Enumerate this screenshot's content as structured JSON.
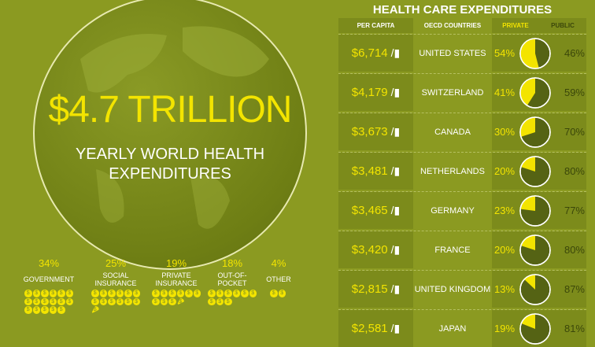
{
  "hero": {
    "amount": "$4.7 TRILLION",
    "caption_line1": "YEARLY WORLD HEALTH",
    "caption_line2": "EXPENDITURES"
  },
  "categories": [
    {
      "pct": "34%",
      "label": "GOVERNMENT",
      "value": 34
    },
    {
      "pct": "25%",
      "label": "SOCIAL INSURANCE",
      "value": 25
    },
    {
      "pct": "19%",
      "label": "PRIVATE INSURANCE",
      "value": 19
    },
    {
      "pct": "18%",
      "label": "OUT-OF-POCKET",
      "value": 18
    },
    {
      "pct": "4%",
      "label": "OTHER",
      "value": 4
    }
  ],
  "table": {
    "title": "HEALTH CARE EXPENDITURES",
    "headers": {
      "per_capita": "PER CAPITA",
      "countries": "OECD COUNTRIES",
      "private": "PRIVATE",
      "public": "PUBLIC"
    },
    "rows": [
      {
        "per_capita": "$6,714",
        "country": "UNITED STATES",
        "private": "54%",
        "public": "46%",
        "private_value": 54
      },
      {
        "per_capita": "$4,179",
        "country": "SWITZERLAND",
        "private": "41%",
        "public": "59%",
        "private_value": 41
      },
      {
        "per_capita": "$3,673",
        "country": "CANADA",
        "private": "30%",
        "public": "70%",
        "private_value": 30
      },
      {
        "per_capita": "$3,481",
        "country": "NETHERLANDS",
        "private": "20%",
        "public": "80%",
        "private_value": 20
      },
      {
        "per_capita": "$3,465",
        "country": "GERMANY",
        "private": "23%",
        "public": "77%",
        "private_value": 23
      },
      {
        "per_capita": "$3,420",
        "country": "FRANCE",
        "private": "20%",
        "public": "80%",
        "private_value": 20
      },
      {
        "per_capita": "$2,815",
        "country": "UNITED KINGDOM",
        "private": "13%",
        "public": "87%",
        "private_value": 13
      },
      {
        "per_capita": "$2,581",
        "country": "JAPAN",
        "private": "19%",
        "public": "81%",
        "private_value": 19
      }
    ]
  },
  "colors": {
    "background": "#8b9a21",
    "accent_yellow": "#f3e400",
    "public_dark": "#556314"
  },
  "chart_data": {
    "type": "table",
    "title": "HEALTH CARE EXPENDITURES",
    "columns": [
      "PER CAPITA",
      "OECD COUNTRIES",
      "PRIVATE",
      "PUBLIC"
    ]
  }
}
